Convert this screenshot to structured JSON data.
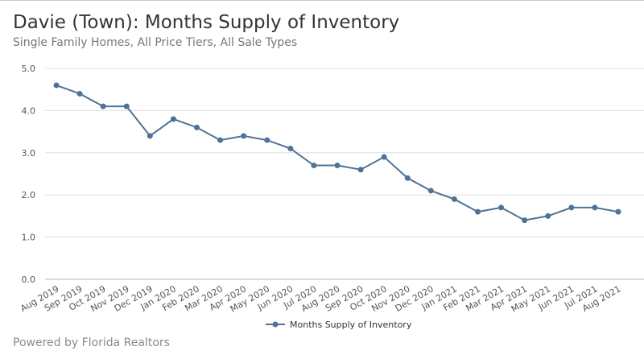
{
  "chart_data": {
    "type": "line",
    "title": "Davie (Town): Months Supply of Inventory",
    "subtitle": "Single Family Homes, All Price Tiers, All Sale Types",
    "xlabel": "",
    "ylabel": "",
    "ylim": [
      0,
      5
    ],
    "yticks": [
      "0.0",
      "1.0",
      "2.0",
      "3.0",
      "4.0",
      "5.0"
    ],
    "grid": true,
    "legend_position": "bottom-center",
    "categories": [
      "Aug 2019",
      "Sep 2019",
      "Oct 2019",
      "Nov 2019",
      "Dec 2019",
      "Jan 2020",
      "Feb 2020",
      "Mar 2020",
      "Apr 2020",
      "May 2020",
      "Jun 2020",
      "Jul 2020",
      "Aug 2020",
      "Sep 2020",
      "Oct 2020",
      "Nov 2020",
      "Dec 2020",
      "Jan 2021",
      "Feb 2021",
      "Mar 2021",
      "Apr 2021",
      "May 2021",
      "Jun 2021",
      "Jul 2021",
      "Aug 2021"
    ],
    "series": [
      {
        "name": "Months Supply of Inventory",
        "color": "#4f7396",
        "values": [
          4.6,
          4.4,
          4.1,
          4.1,
          3.4,
          3.8,
          3.6,
          3.3,
          3.4,
          3.3,
          3.1,
          2.7,
          2.7,
          2.6,
          2.9,
          2.4,
          2.1,
          1.9,
          1.6,
          1.7,
          1.4,
          1.5,
          1.7,
          1.7,
          1.6
        ]
      }
    ]
  },
  "footer": "Powered by Florida Realtors"
}
